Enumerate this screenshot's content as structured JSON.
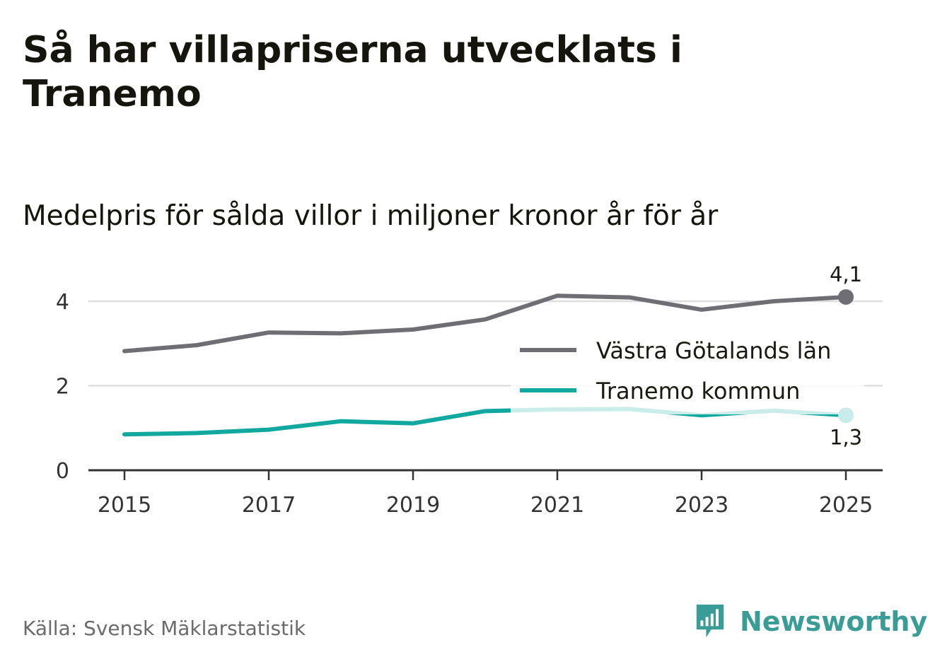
{
  "header": {
    "title": "Så har villapriserna utvecklats i Tranemo",
    "subtitle": "Medelpris för sålda villor i miljoner kronor år för år"
  },
  "footer": {
    "source": "Källa: Svensk Mäklarstatistik",
    "brand": "Newsworthy",
    "brand_icon": "bar-chart-speech-icon"
  },
  "colors": {
    "region": "#6f6e74",
    "municipality": "#10a89f",
    "municipality_light": "#c9ecea",
    "grid": "#dddddd",
    "axis": "#333333",
    "brand": "#3a9c96"
  },
  "chart_data": {
    "type": "line",
    "title": "Medelpris för sålda villor i miljoner kronor år för år",
    "xlabel": "",
    "ylabel": "",
    "x": [
      2015,
      2016,
      2017,
      2018,
      2019,
      2020,
      2021,
      2022,
      2023,
      2024,
      2025
    ],
    "xticks": [
      "2015",
      "2017",
      "2019",
      "2021",
      "2023",
      "2025"
    ],
    "yticks": [
      "0",
      "2",
      "4"
    ],
    "ylim": [
      0,
      4.1
    ],
    "grid": true,
    "legend_position": "right",
    "series": [
      {
        "name": "Västra Götalands län",
        "values": [
          2.82,
          2.96,
          3.26,
          3.24,
          3.33,
          3.57,
          4.13,
          4.09,
          3.8,
          4.0,
          4.1
        ]
      },
      {
        "name": "Tranemo kommun",
        "values": [
          0.85,
          0.88,
          0.96,
          1.16,
          1.11,
          1.4,
          1.44,
          1.45,
          1.3,
          1.41,
          1.3
        ]
      }
    ],
    "annotations": [
      {
        "series": "Västra Götalands län",
        "x": 2025,
        "label": "4,1"
      },
      {
        "series": "Tranemo kommun",
        "x": 2025,
        "label": "1,3"
      }
    ]
  }
}
